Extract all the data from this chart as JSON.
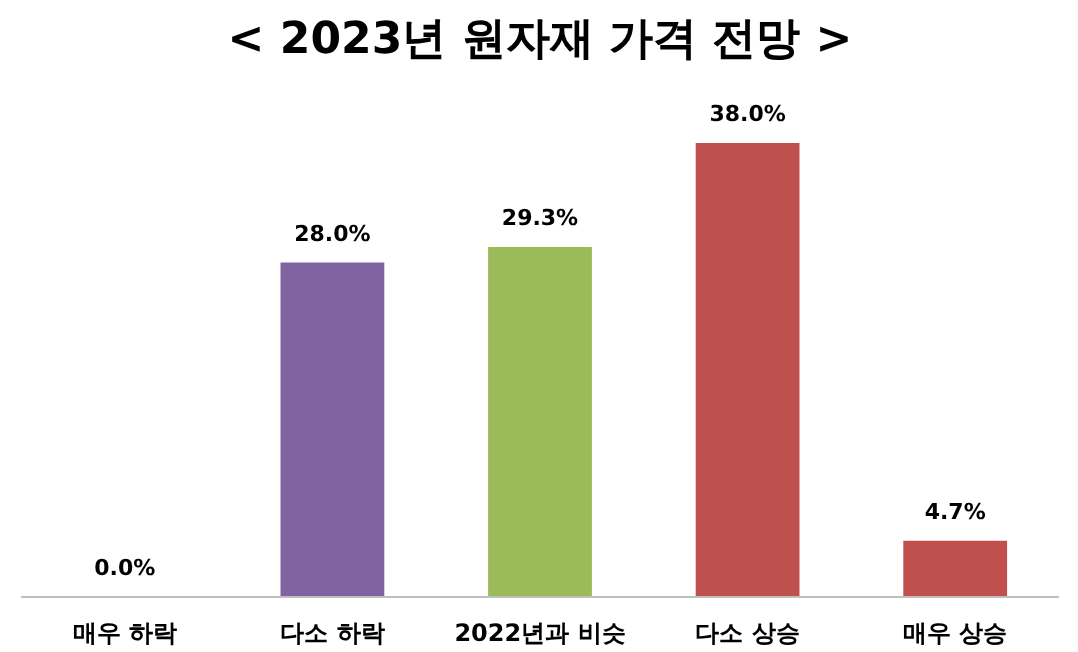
{
  "chart_data": {
    "type": "bar",
    "title": "< 2023년 원자재 가격 전망 >",
    "categories": [
      "매우 하락",
      "다소 하락",
      "2022년과 비슷",
      "다소 상승",
      "매우 상승"
    ],
    "values": [
      0,
      28.0,
      29.3,
      38.0,
      4.7
    ],
    "colors": [
      "#8064a2",
      "#8064a2",
      "#9bbb59",
      "#c0504d",
      "#c0504d"
    ],
    "value_labels": [
      "0.0%",
      "28.0%",
      "29.3%",
      "38.0%",
      "4.7%"
    ],
    "grid": false
  }
}
